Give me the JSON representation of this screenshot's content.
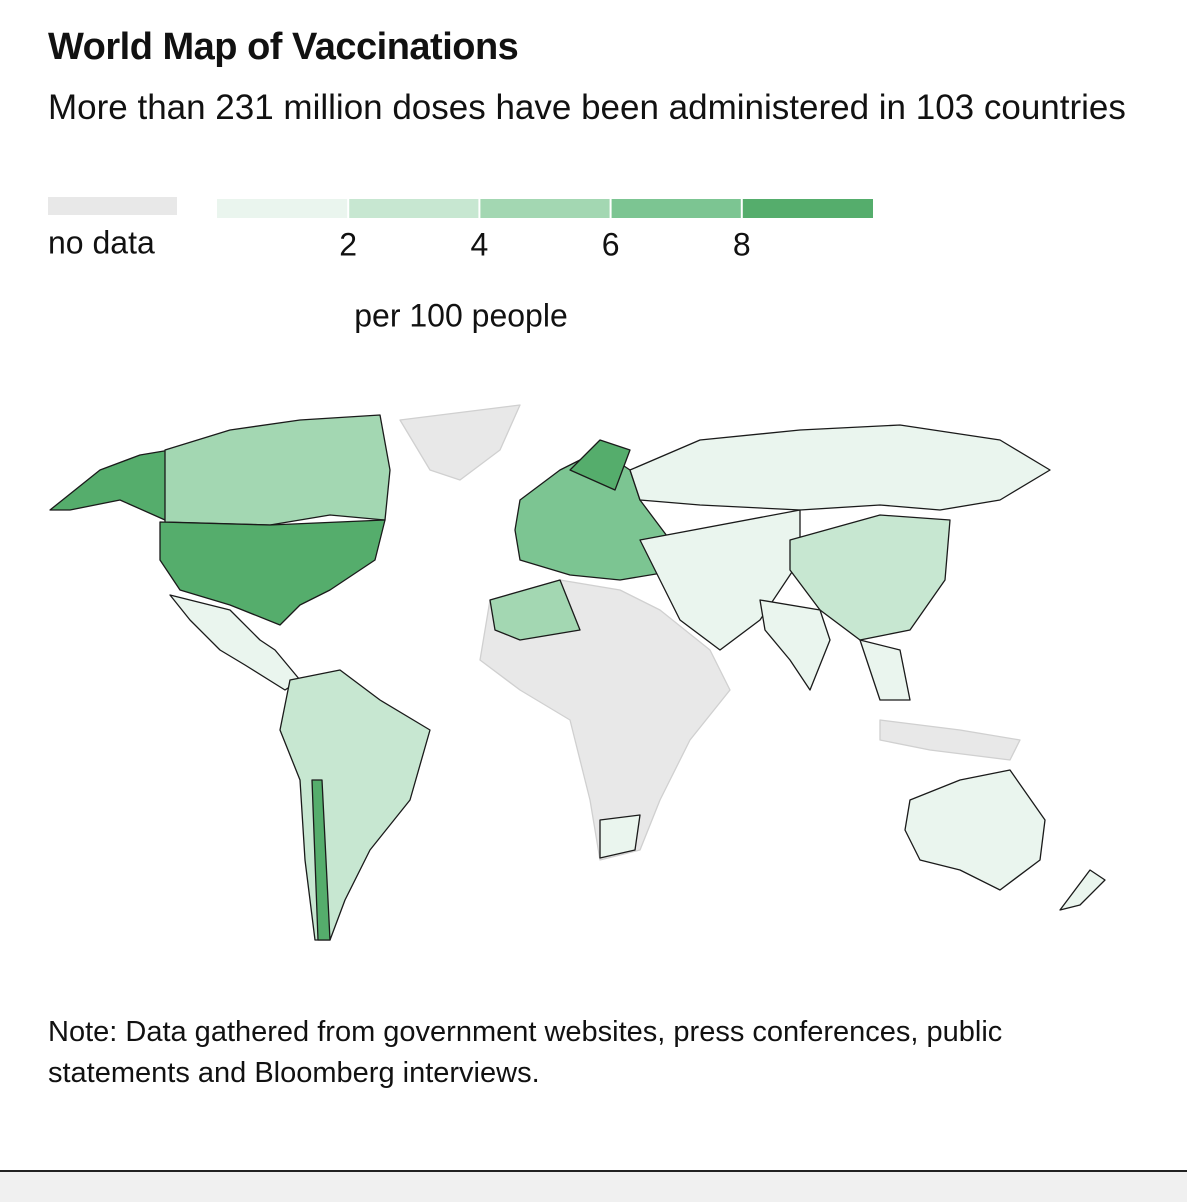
{
  "header": {
    "title": "World Map of Vaccinations",
    "subtitle": "More than 231 million doses have been administered in 103 countries"
  },
  "legend": {
    "no_data_label": "no data",
    "no_data_color": "#e8e8e8",
    "colors": [
      "#eaf5ee",
      "#c7e7d1",
      "#a3d7b2",
      "#7cc592",
      "#55ad6c"
    ],
    "range": [
      0,
      10
    ],
    "ticks": [
      2,
      4,
      6,
      8
    ],
    "unit_label": "per 100 people"
  },
  "note": "Note: Data gathered from government websites, press conferences, public statements and Bloomberg interviews."
}
